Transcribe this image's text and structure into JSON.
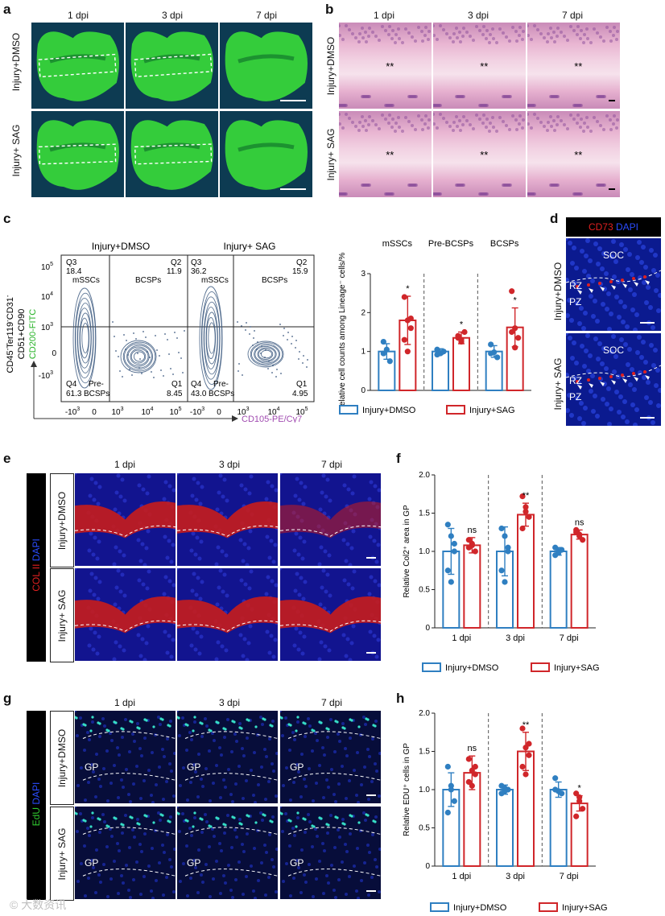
{
  "figure": {
    "panels": {
      "a": {
        "label": "a",
        "columns": [
          "1 dpi",
          "3 dpi",
          "7 dpi"
        ],
        "rows": [
          "Injury+DMSO",
          "Injury+ SAG"
        ]
      },
      "b": {
        "label": "b",
        "columns": [
          "1 dpi",
          "3 dpi",
          "7 dpi"
        ],
        "rows": [
          "Injury+DMSO",
          "Injury+ SAG"
        ],
        "marker": "**"
      },
      "c": {
        "label": "c",
        "flow_titles": [
          "Injury+DMSO",
          "Injury+ SAG"
        ],
        "y_axis": {
          "line1": "CD45",
          "line1b": "Ter119",
          "line1c": "CD31",
          "line2": "CD51+CD90",
          "line3": "CD200-FITC",
          "sup": "-"
        },
        "x_axis": "CD105-PE/Cy7",
        "quadrants_dmso": {
          "q3": "Q3",
          "q3v": "18.4",
          "q2": "Q2",
          "q2v": "11.9",
          "q4": "Q4",
          "q4v": "61.3",
          "q1": "Q1",
          "q1v": "8.45"
        },
        "quadrants_sag": {
          "q3": "Q3",
          "q3v": "36.2",
          "q2": "Q2",
          "q2v": "15.9",
          "q4": "Q4",
          "q4v": "43.0",
          "q1": "Q1",
          "q1v": "4.95"
        },
        "pop": {
          "mssc": "mSSCs",
          "bcsp": "BCSPs",
          "pre": "Pre-",
          "bcsp2": "BCSPs"
        },
        "yticks": [
          "10",
          "10",
          "10",
          "0",
          "-10"
        ],
        "yexp": [
          "5",
          "4",
          "3",
          "",
          "3"
        ],
        "xticks": [
          "-10",
          "0",
          "10",
          "10",
          "10"
        ],
        "xexp": [
          "3",
          "",
          "3",
          "4",
          "5"
        ]
      },
      "d": {
        "label": "d",
        "stain1": "CD73",
        "stain2": "DAPI",
        "rows": [
          "Injury+DMSO",
          "Injury+ SAG"
        ],
        "soc": "SOC",
        "rz": "RZ",
        "pz": "PZ"
      },
      "e": {
        "label": "e",
        "columns": [
          "1 dpi",
          "3 dpi",
          "7 dpi"
        ],
        "rows": [
          "Injury+DMSO",
          "Injury+ SAG"
        ],
        "stain1": "COL II",
        "stain2": "DAPI"
      },
      "g": {
        "label": "g",
        "columns": [
          "1 dpi",
          "3 dpi",
          "7 dpi"
        ],
        "rows": [
          "Injury+DMSO",
          "Injury+ SAG"
        ],
        "stain1": "EdU",
        "stain2": "DAPI",
        "gp": "GP"
      },
      "f": {
        "label": "f"
      },
      "h": {
        "label": "h"
      }
    },
    "colors": {
      "dmso": "#2f7fc1",
      "sag": "#d0262a"
    },
    "watermark": "© 大数资讯"
  },
  "chart_data": [
    {
      "id": "c",
      "type": "bar",
      "ylabel": "Relative cell counts among Lineage⁻ cells/%",
      "ylim": [
        0,
        3
      ],
      "yticks": [
        0,
        1,
        2,
        3
      ],
      "categories": [
        "mSSCs",
        "Pre-BCSPs",
        "BCSPs"
      ],
      "series": [
        {
          "name": "Injury+DMSO",
          "values": [
            1.0,
            1.0,
            1.0
          ],
          "errors": [
            0.2,
            0.07,
            0.15
          ],
          "points": [
            [
              1.25,
              1.05,
              0.75,
              0.95
            ],
            [
              1.05,
              0.95,
              1.0,
              0.92
            ],
            [
              1.18,
              0.98,
              0.85,
              0.95
            ]
          ]
        },
        {
          "name": "Injury+SAG",
          "values": [
            1.8,
            1.35,
            1.62
          ],
          "errors": [
            0.62,
            0.15,
            0.5
          ],
          "points": [
            [
              2.4,
              1.8,
              1.6,
              1.3,
              1.0,
              1.85
            ],
            [
              1.35,
              1.25,
              1.5,
              1.4,
              1.3
            ],
            [
              2.55,
              1.6,
              1.35,
              1.5,
              1.1
            ]
          ]
        }
      ],
      "annotations": [
        "*",
        "*",
        "*"
      ],
      "legend": [
        "Injury+DMSO",
        "Injury+SAG"
      ]
    },
    {
      "id": "f",
      "type": "bar",
      "ylabel": "Relative Col2⁺ area in GP",
      "ylim": [
        0,
        2.0
      ],
      "yticks": [
        0,
        0.5,
        1.0,
        1.5,
        2.0
      ],
      "categories": [
        "1 dpi",
        "3 dpi",
        "7 dpi"
      ],
      "series": [
        {
          "name": "Injury+DMSO",
          "values": [
            1.0,
            1.0,
            1.0
          ],
          "errors": [
            0.3,
            0.32,
            0.05
          ],
          "points": [
            [
              1.35,
              1.2,
              1.0,
              0.75,
              0.6,
              1.1
            ],
            [
              1.3,
              1.2,
              1.0,
              0.75,
              0.6,
              1.05
            ],
            [
              1.05,
              0.98,
              1.02,
              0.95,
              1.0
            ]
          ]
        },
        {
          "name": "Injury+SAG",
          "values": [
            1.08,
            1.48,
            1.22
          ],
          "errors": [
            0.1,
            0.15,
            0.06
          ],
          "points": [
            [
              1.15,
              1.08,
              1.0,
              1.05,
              1.1
            ],
            [
              1.72,
              1.58,
              1.45,
              1.3,
              1.52
            ],
            [
              1.28,
              1.2,
              1.15,
              1.25,
              1.22
            ]
          ]
        }
      ],
      "annotations": [
        "ns",
        "**",
        "ns"
      ],
      "legend": [
        "Injury+DMSO",
        "Injury+SAG"
      ]
    },
    {
      "id": "h",
      "type": "bar",
      "ylabel": "Relative EDU⁺ cells in GP",
      "ylim": [
        0,
        2.0
      ],
      "yticks": [
        0,
        0.5,
        1.0,
        1.5,
        2.0
      ],
      "categories": [
        "1 dpi",
        "3 dpi",
        "7 dpi"
      ],
      "series": [
        {
          "name": "Injury+DMSO",
          "values": [
            1.0,
            1.0,
            1.0
          ],
          "errors": [
            0.22,
            0.06,
            0.1
          ],
          "points": [
            [
              1.3,
              1.05,
              0.85,
              0.7,
              1.0
            ],
            [
              1.05,
              0.98,
              1.0,
              0.95,
              1.02
            ],
            [
              1.15,
              0.98,
              0.95,
              1.0
            ]
          ]
        },
        {
          "name": "Injury+SAG",
          "values": [
            1.22,
            1.5,
            0.82
          ],
          "errors": [
            0.22,
            0.25,
            0.1
          ],
          "points": [
            [
              1.4,
              1.25,
              1.2,
              1.1,
              1.05,
              1.3
            ],
            [
              1.8,
              1.55,
              1.45,
              1.3,
              1.2,
              1.6
            ],
            [
              0.95,
              0.85,
              0.75,
              0.65,
              0.9
            ]
          ]
        }
      ],
      "annotations": [
        "ns",
        "**",
        "*"
      ],
      "legend": [
        "Injury+DMSO",
        "Injury+SAG"
      ]
    }
  ]
}
